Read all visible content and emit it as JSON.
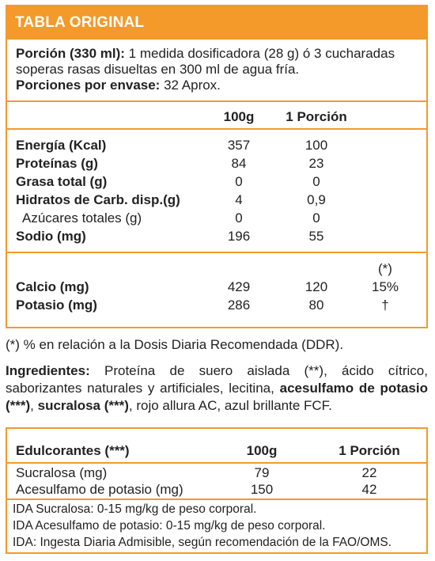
{
  "header": {
    "title": "TABLA ORIGINAL"
  },
  "serving": {
    "portion_label": "Porción (330 ml):",
    "portion_line1": "1 medida dosificadora (28 g) ó 3 cucharadas",
    "portion_line2": "soperas rasas disueltas en 300 ml de agua fría.",
    "per_container_label": "Porciones por envase:",
    "per_container_value": "32 Aprox."
  },
  "nutrition": {
    "col_100g": "100g",
    "col_portion": "1 Porción",
    "rows": [
      {
        "name": "Energía (Kcal)",
        "v100": "357",
        "vpor": "100"
      },
      {
        "name": "Proteínas (g)",
        "v100": "84",
        "vpor": "23"
      },
      {
        "name": "Grasa total (g)",
        "v100": "0",
        "vpor": "0"
      },
      {
        "name": "Hidratos de Carb. disp.(g)",
        "v100": "4",
        "vpor": "0,9"
      },
      {
        "name": "Azúcares totales (g)",
        "v100": "0",
        "vpor": "0"
      },
      {
        "name": "Sodio (mg)",
        "v100": "196",
        "vpor": "55"
      }
    ],
    "minerals": {
      "ddr_head": "(*)",
      "rows": [
        {
          "name": "Calcio (mg)",
          "v100": "429",
          "vpor": "120",
          "ddr": "15%"
        },
        {
          "name": "Potasio (mg)",
          "v100": "286",
          "vpor": "80",
          "ddr": "†"
        }
      ]
    }
  },
  "footnote": "(*) % en relación a la Dosis Diaria Recomendada (DDR).",
  "ingredients": {
    "label": "Ingredientes:",
    "text1": " Proteína de suero aislada (**), ácido cítrico, saborizantes naturales y artificiales, lecitina, ",
    "bold1": "acesulfamo de potasio (***)",
    "text2": ", ",
    "bold2": "sucralosa (***)",
    "text3": ", rojo allura AC, azul brillante FCF."
  },
  "sweeteners": {
    "head_name": "Edulcorantes (***)",
    "head_100g": "100g",
    "head_portion": "1 Porción",
    "rows": [
      {
        "name": "Sucralosa (mg)",
        "v100": "79",
        "vpor": "22"
      },
      {
        "name": "Acesulfamo de potasio (mg)",
        "v100": "150",
        "vpor": "42"
      }
    ],
    "notes": [
      "IDA Sucralosa: 0-15 mg/kg de peso corporal.",
      "IDA Acesulfamo de potasio: 0-15 mg/kg de peso corporal.",
      "IDA: Ingesta Diaria Admisible, según recomendación de la FAO/OMS."
    ]
  },
  "colors": {
    "accent": "#f39a2a"
  }
}
